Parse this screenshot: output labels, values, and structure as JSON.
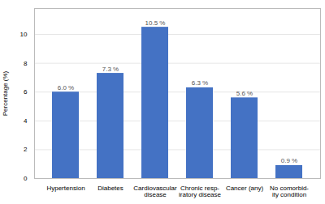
{
  "chart_data": {
    "type": "bar",
    "categories": [
      "Hypertension",
      "Diabetes",
      "Cardiovascular\ndisease",
      "Chronic resp-\niratory disease",
      "Cancer (any)",
      "No comorbid-\nity condition"
    ],
    "values": [
      6.0,
      7.3,
      10.5,
      6.3,
      5.6,
      0.9
    ],
    "value_labels": [
      "6.0 %",
      "7.3 %",
      "10.5 %",
      "6.3 %",
      "5.6 %",
      "0.9 %"
    ],
    "data_labels": true,
    "color": "#4472C4",
    "ylabel": "Percentage (%)",
    "ylim": [
      0,
      11.8
    ],
    "yticks": [
      0,
      2,
      4,
      6,
      8,
      10
    ],
    "grid": true
  }
}
